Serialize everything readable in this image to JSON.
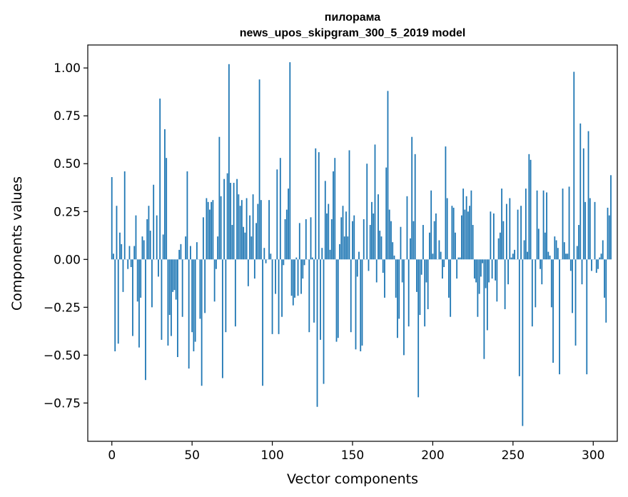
{
  "chart_data": {
    "type": "bar",
    "title_line1": "пилорама",
    "title_line2": "news_upos_skipgram_300_5_2019 model",
    "xlabel": "Vector components",
    "ylabel": "Components values",
    "xlim": [
      -15,
      315
    ],
    "ylim": [
      -0.95,
      1.12
    ],
    "bar_color": "#1f77b4",
    "x_ticks": [
      0,
      50,
      100,
      150,
      200,
      250,
      300
    ],
    "x_tick_labels": [
      "0",
      "50",
      "100",
      "150",
      "200",
      "250",
      "300"
    ],
    "y_ticks": [
      1.0,
      0.75,
      0.5,
      0.25,
      0.0,
      -0.25,
      -0.5,
      -0.75
    ],
    "y_tick_labels": [
      "1.00",
      "0.75",
      "0.50",
      "0.25",
      "0.00",
      "−0.25",
      "−0.50",
      "−0.75"
    ],
    "values": [
      0.43,
      0.03,
      -0.48,
      0.28,
      -0.44,
      0.14,
      0.08,
      -0.17,
      0.46,
      0.0,
      -0.05,
      0.07,
      -0.04,
      -0.4,
      0.07,
      0.23,
      -0.22,
      -0.46,
      -0.2,
      0.12,
      0.1,
      -0.63,
      0.21,
      0.28,
      0.15,
      -0.25,
      0.39,
      0.0,
      0.23,
      -0.09,
      0.84,
      -0.42,
      0.13,
      0.68,
      0.53,
      -0.45,
      -0.29,
      -0.4,
      -0.17,
      -0.16,
      -0.21,
      -0.51,
      0.05,
      0.08,
      -0.3,
      0.0,
      0.12,
      0.46,
      -0.57,
      0.07,
      -0.38,
      -0.48,
      -0.43,
      0.09,
      0.0,
      -0.31,
      -0.66,
      0.22,
      -0.28,
      0.32,
      0.3,
      0.26,
      0.3,
      0.31,
      -0.22,
      -0.05,
      0.12,
      0.64,
      0.33,
      -0.62,
      0.42,
      -0.38,
      0.45,
      1.02,
      0.4,
      0.18,
      0.4,
      -0.35,
      0.42,
      0.34,
      0.28,
      0.31,
      0.17,
      0.14,
      0.32,
      -0.14,
      0.23,
      0.12,
      0.34,
      -0.1,
      0.19,
      0.29,
      0.94,
      0.31,
      -0.66,
      0.06,
      -0.02,
      0.0,
      0.31,
      0.03,
      -0.39,
      0.0,
      -0.18,
      0.47,
      -0.39,
      0.53,
      -0.3,
      -0.03,
      0.21,
      0.26,
      0.37,
      1.03,
      -0.19,
      -0.24,
      -0.2,
      0.01,
      -0.19,
      0.19,
      -0.18,
      -0.1,
      -0.03,
      0.21,
      0.0,
      -0.38,
      0.22,
      0.01,
      -0.33,
      0.58,
      -0.77,
      0.56,
      -0.42,
      0.06,
      -0.65,
      0.41,
      0.24,
      0.29,
      0.05,
      0.21,
      0.46,
      0.53,
      -0.43,
      -0.41,
      0.08,
      0.22,
      0.28,
      0.12,
      0.25,
      0.12,
      0.57,
      -0.38,
      0.2,
      0.23,
      -0.47,
      -0.09,
      0.04,
      -0.48,
      -0.45,
      0.21,
      0.0,
      0.5,
      -0.06,
      0.18,
      0.3,
      0.24,
      0.6,
      -0.12,
      0.34,
      0.15,
      0.12,
      -0.07,
      -0.2,
      0.48,
      0.88,
      0.26,
      0.2,
      0.09,
      0.02,
      -0.2,
      -0.41,
      -0.31,
      0.17,
      -0.12,
      -0.5,
      0.0,
      0.33,
      -0.35,
      0.11,
      0.64,
      0.2,
      0.55,
      -0.17,
      -0.72,
      -0.29,
      -0.08,
      0.18,
      -0.35,
      -0.12,
      -0.26,
      0.14,
      0.36,
      0.03,
      0.2,
      0.24,
      0.0,
      0.1,
      0.04,
      -0.1,
      -0.04,
      0.59,
      0.32,
      -0.2,
      -0.3,
      0.28,
      0.27,
      0.14,
      -0.1,
      0.01,
      0.01,
      0.23,
      0.37,
      0.26,
      0.33,
      0.25,
      0.28,
      0.36,
      0.18,
      -0.1,
      -0.12,
      -0.3,
      -0.18,
      -0.09,
      -0.02,
      -0.52,
      -0.15,
      -0.37,
      -0.12,
      0.25,
      -0.1,
      0.24,
      -0.11,
      -0.22,
      0.11,
      0.14,
      0.37,
      0.2,
      -0.26,
      0.29,
      -0.13,
      0.32,
      0.01,
      0.03,
      0.05,
      0.0,
      0.26,
      -0.61,
      0.28,
      -0.87,
      0.1,
      0.37,
      0.04,
      0.55,
      0.52,
      -0.35,
      0.0,
      -0.25,
      0.36,
      0.16,
      -0.05,
      -0.13,
      0.36,
      0.14,
      0.35,
      0.04,
      0.02,
      -0.25,
      -0.54,
      0.12,
      0.1,
      0.06,
      -0.6,
      0.0,
      0.37,
      0.09,
      0.03,
      0.03,
      0.38,
      -0.06,
      -0.28,
      0.98,
      -0.45,
      0.07,
      0.18,
      0.71,
      -0.13,
      0.58,
      0.3,
      -0.6,
      0.67,
      0.32,
      -0.06,
      0.0,
      0.3,
      -0.07,
      -0.05,
      0.01,
      0.03,
      0.1,
      -0.2,
      -0.33,
      0.27,
      0.23,
      0.44
    ]
  }
}
